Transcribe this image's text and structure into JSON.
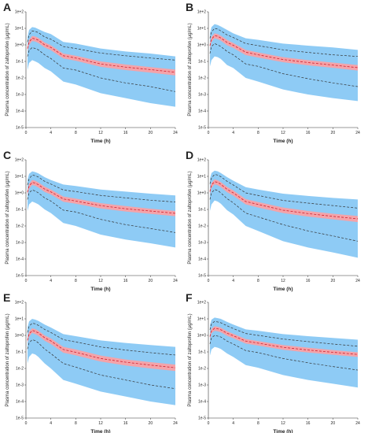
{
  "figure": {
    "colors": {
      "outer_band": "#8ecbf5",
      "inner_band": "#f4a3a9",
      "median_line": "#d01e2b",
      "bound_line": "#333333",
      "axis": "#333333"
    }
  },
  "chart_data": [
    {
      "type": "area",
      "panel": "A",
      "xlabel": "Time (h)",
      "ylabel": "Plasma concentration of zaltoprofen (μg/mL)",
      "xlim": [
        0,
        24
      ],
      "ylim": [
        1e-05,
        100
      ],
      "yscale": "log",
      "xticks": [
        0,
        4,
        8,
        12,
        16,
        20,
        24
      ],
      "yticks": [
        "1e-5",
        "1e-4",
        "1e-3",
        "1e-2",
        "1e-1",
        "1e+0",
        "1e+1",
        "1e+2"
      ],
      "x": [
        0.25,
        0.5,
        1,
        1.5,
        2,
        3,
        4,
        6,
        8,
        12,
        16,
        20,
        24
      ],
      "series": [
        {
          "role": "outer_upper",
          "values": [
            3,
            8,
            12,
            11,
            9,
            6,
            4.5,
            1.5,
            1.2,
            0.6,
            0.4,
            0.3,
            0.2
          ]
        },
        {
          "role": "dashed_upper",
          "values": [
            1.5,
            4,
            7,
            6.5,
            5.5,
            3,
            2.2,
            0.8,
            0.6,
            0.32,
            0.22,
            0.16,
            0.12
          ]
        },
        {
          "role": "inner_upper",
          "values": [
            0.8,
            2,
            3.5,
            3.2,
            2.6,
            1.4,
            0.95,
            0.3,
            0.22,
            0.1,
            0.065,
            0.045,
            0.032
          ]
        },
        {
          "role": "median",
          "values": [
            0.6,
            1.5,
            2.5,
            2.3,
            1.9,
            1,
            0.7,
            0.22,
            0.16,
            0.07,
            0.045,
            0.032,
            0.022
          ]
        },
        {
          "role": "inner_lower",
          "values": [
            0.4,
            1,
            1.7,
            1.6,
            1.3,
            0.7,
            0.48,
            0.15,
            0.11,
            0.047,
            0.03,
            0.021,
            0.014
          ]
        },
        {
          "role": "dashed_lower",
          "values": [
            0.2,
            0.45,
            0.7,
            0.6,
            0.5,
            0.25,
            0.15,
            0.04,
            0.03,
            0.01,
            0.005,
            0.003,
            0.0015
          ]
        },
        {
          "role": "outer_lower",
          "values": [
            0.03,
            0.08,
            0.12,
            0.1,
            0.08,
            0.04,
            0.025,
            0.006,
            0.004,
            0.0012,
            0.0006,
            0.0003,
            0.00018
          ]
        }
      ]
    },
    {
      "type": "area",
      "panel": "B",
      "xlabel": "Time (h)",
      "ylabel": "Plasma concentration of zaltoprofen (μg/mL)",
      "xlim": [
        0,
        24
      ],
      "ylim": [
        1e-05,
        100
      ],
      "yscale": "log",
      "xticks": [
        0,
        4,
        8,
        12,
        16,
        20,
        24
      ],
      "yticks": [
        "1e-5",
        "1e-4",
        "1e-3",
        "1e-2",
        "1e-1",
        "1e+0",
        "1e+1",
        "1e+2"
      ],
      "x": [
        0.25,
        0.5,
        1,
        1.5,
        2,
        3,
        4,
        6,
        8,
        12,
        16,
        20,
        24
      ],
      "series": [
        {
          "role": "outer_upper",
          "values": [
            5,
            12,
            18,
            16,
            13,
            8,
            5,
            2.5,
            2,
            1.2,
            0.9,
            0.7,
            0.5
          ]
        },
        {
          "role": "dashed_upper",
          "values": [
            2.5,
            6,
            10,
            9,
            7,
            4,
            2.8,
            1.2,
            0.9,
            0.5,
            0.35,
            0.25,
            0.2
          ]
        },
        {
          "role": "inner_upper",
          "values": [
            1.2,
            3,
            5,
            4.5,
            3.6,
            2,
            1.3,
            0.5,
            0.35,
            0.18,
            0.12,
            0.085,
            0.06
          ]
        },
        {
          "role": "median",
          "values": [
            0.9,
            2.2,
            3.6,
            3.3,
            2.6,
            1.4,
            0.95,
            0.36,
            0.25,
            0.13,
            0.085,
            0.06,
            0.042
          ]
        },
        {
          "role": "inner_lower",
          "values": [
            0.6,
            1.5,
            2.5,
            2.2,
            1.8,
            0.95,
            0.65,
            0.24,
            0.17,
            0.09,
            0.058,
            0.041,
            0.028
          ]
        },
        {
          "role": "dashed_lower",
          "values": [
            0.3,
            0.8,
            1.2,
            1,
            0.8,
            0.4,
            0.25,
            0.07,
            0.05,
            0.018,
            0.009,
            0.005,
            0.003
          ]
        },
        {
          "role": "outer_lower",
          "values": [
            0.05,
            0.12,
            0.2,
            0.18,
            0.14,
            0.06,
            0.04,
            0.01,
            0.006,
            0.002,
            0.001,
            0.0006,
            0.0004
          ]
        }
      ]
    },
    {
      "type": "area",
      "panel": "C",
      "xlabel": "Time (h)",
      "ylabel": "Plasma concentration of zaltoprofen (μg/mL)",
      "xlim": [
        0,
        24
      ],
      "ylim": [
        1e-05,
        100
      ],
      "yscale": "log",
      "xticks": [
        0,
        4,
        8,
        12,
        16,
        20,
        24
      ],
      "yticks": [
        "1e-5",
        "1e-4",
        "1e-3",
        "1e-2",
        "1e-1",
        "1e+0",
        "1e+1",
        "1e+2"
      ],
      "x": [
        0.25,
        0.5,
        1,
        1.5,
        2,
        3,
        4,
        6,
        8,
        12,
        16,
        20,
        24
      ],
      "series": [
        {
          "role": "outer_upper",
          "values": [
            6,
            14,
            20,
            18,
            15,
            9,
            6,
            3.2,
            2.6,
            1.6,
            1.2,
            0.9,
            0.7
          ]
        },
        {
          "role": "dashed_upper",
          "values": [
            3,
            7,
            12,
            11,
            9,
            5,
            3.4,
            1.5,
            1.2,
            0.7,
            0.5,
            0.36,
            0.28
          ]
        },
        {
          "role": "inner_upper",
          "values": [
            1.5,
            3.5,
            6,
            5.4,
            4.3,
            2.4,
            1.6,
            0.6,
            0.45,
            0.24,
            0.16,
            0.11,
            0.08
          ]
        },
        {
          "role": "median",
          "values": [
            1.1,
            2.6,
            4.3,
            3.9,
            3.1,
            1.7,
            1.15,
            0.43,
            0.32,
            0.17,
            0.11,
            0.08,
            0.058
          ]
        },
        {
          "role": "inner_lower",
          "values": [
            0.75,
            1.8,
            3,
            2.7,
            2.1,
            1.15,
            0.8,
            0.29,
            0.22,
            0.115,
            0.075,
            0.054,
            0.039
          ]
        },
        {
          "role": "dashed_lower",
          "values": [
            0.4,
            1,
            1.5,
            1.3,
            1,
            0.5,
            0.32,
            0.09,
            0.07,
            0.025,
            0.012,
            0.007,
            0.004
          ]
        },
        {
          "role": "outer_lower",
          "values": [
            0.08,
            0.2,
            0.3,
            0.25,
            0.2,
            0.1,
            0.06,
            0.015,
            0.01,
            0.003,
            0.0015,
            0.0009,
            0.0005
          ]
        }
      ]
    },
    {
      "type": "area",
      "panel": "D",
      "xlabel": "Time (h)",
      "ylabel": "Plasma concentration of zaltoprofen (μg/mL)",
      "xlim": [
        0,
        24
      ],
      "ylim": [
        1e-05,
        100
      ],
      "yscale": "log",
      "xticks": [
        0,
        4,
        8,
        12,
        16,
        20,
        24
      ],
      "yticks": [
        "1e-5",
        "1e-4",
        "1e-3",
        "1e-2",
        "1e-1",
        "1e+0",
        "1e+1",
        "1e+2"
      ],
      "x": [
        0.25,
        0.5,
        1,
        1.5,
        2,
        3,
        4,
        6,
        8,
        12,
        16,
        20,
        24
      ],
      "series": [
        {
          "role": "outer_upper",
          "values": [
            7,
            16,
            22,
            20,
            16,
            9,
            5.5,
            2.2,
            1.6,
            0.9,
            0.65,
            0.5,
            0.4
          ]
        },
        {
          "role": "dashed_upper",
          "values": [
            3.5,
            8,
            13,
            12,
            9.5,
            5,
            3,
            1,
            0.7,
            0.35,
            0.24,
            0.17,
            0.12
          ]
        },
        {
          "role": "inner_upper",
          "values": [
            1.6,
            4,
            6.5,
            5.8,
            4.5,
            2.3,
            1.4,
            0.42,
            0.28,
            0.13,
            0.08,
            0.055,
            0.04
          ]
        },
        {
          "role": "median",
          "values": [
            1.2,
            3,
            4.8,
            4.3,
            3.3,
            1.65,
            1,
            0.3,
            0.2,
            0.09,
            0.056,
            0.038,
            0.027
          ]
        },
        {
          "role": "inner_lower",
          "values": [
            0.8,
            2,
            3.3,
            2.9,
            2.2,
            1.1,
            0.68,
            0.2,
            0.13,
            0.06,
            0.037,
            0.025,
            0.017
          ]
        },
        {
          "role": "dashed_lower",
          "values": [
            0.4,
            1,
            1.6,
            1.4,
            1,
            0.45,
            0.25,
            0.06,
            0.035,
            0.012,
            0.005,
            0.0025,
            0.0012
          ]
        },
        {
          "role": "outer_lower",
          "values": [
            0.08,
            0.2,
            0.35,
            0.3,
            0.22,
            0.09,
            0.05,
            0.01,
            0.005,
            0.0012,
            0.0005,
            0.00025,
            0.00012
          ]
        }
      ]
    },
    {
      "type": "area",
      "panel": "E",
      "xlabel": "Time (h)",
      "ylabel": "Plasma concentration of zaltoprofen (μg/mL)",
      "xlim": [
        0,
        24
      ],
      "ylim": [
        1e-05,
        100
      ],
      "yscale": "log",
      "xticks": [
        0,
        4,
        8,
        12,
        16,
        20,
        24
      ],
      "yticks": [
        "1e-5",
        "1e-4",
        "1e-3",
        "1e-2",
        "1e-1",
        "1e+0",
        "1e+1",
        "1e+2"
      ],
      "x": [
        0.25,
        0.5,
        1,
        1.5,
        2,
        3,
        4,
        6,
        8,
        12,
        16,
        20,
        24
      ],
      "series": [
        {
          "role": "outer_upper",
          "values": [
            3,
            7,
            10,
            9,
            7.5,
            4.5,
            3,
            1.2,
            0.9,
            0.5,
            0.35,
            0.26,
            0.2
          ]
        },
        {
          "role": "dashed_upper",
          "values": [
            1.5,
            3.5,
            5.5,
            5,
            4,
            2.3,
            1.5,
            0.55,
            0.4,
            0.2,
            0.13,
            0.09,
            0.065
          ]
        },
        {
          "role": "inner_upper",
          "values": [
            0.7,
            1.7,
            2.7,
            2.4,
            1.9,
            1,
            0.65,
            0.2,
            0.14,
            0.06,
            0.035,
            0.024,
            0.017
          ]
        },
        {
          "role": "median",
          "values": [
            0.5,
            1.2,
            2,
            1.75,
            1.4,
            0.72,
            0.46,
            0.14,
            0.095,
            0.04,
            0.024,
            0.016,
            0.011
          ]
        },
        {
          "role": "inner_lower",
          "values": [
            0.35,
            0.85,
            1.4,
            1.2,
            0.95,
            0.48,
            0.3,
            0.09,
            0.062,
            0.026,
            0.015,
            0.01,
            0.007
          ]
        },
        {
          "role": "dashed_lower",
          "values": [
            0.15,
            0.35,
            0.55,
            0.48,
            0.35,
            0.15,
            0.08,
            0.02,
            0.012,
            0.004,
            0.002,
            0.001,
            0.0006
          ]
        },
        {
          "role": "outer_lower",
          "values": [
            0.02,
            0.05,
            0.08,
            0.07,
            0.05,
            0.02,
            0.01,
            0.002,
            0.0012,
            0.0004,
            0.0002,
            0.0001,
            6e-05
          ]
        }
      ]
    },
    {
      "type": "area",
      "panel": "F",
      "xlabel": "Time (h)",
      "ylabel": "Plasma concentration of zaltoprofen (μg/mL)",
      "xlim": [
        0,
        24
      ],
      "ylim": [
        1e-05,
        100
      ],
      "yscale": "log",
      "xticks": [
        0,
        4,
        8,
        12,
        16,
        20,
        24
      ],
      "yticks": [
        "1e-5",
        "1e-4",
        "1e-3",
        "1e-2",
        "1e-1",
        "1e+0",
        "1e+1",
        "1e+2"
      ],
      "x": [
        0.25,
        0.5,
        1,
        1.5,
        2,
        3,
        4,
        6,
        8,
        12,
        16,
        20,
        24
      ],
      "series": [
        {
          "role": "outer_upper",
          "values": [
            4,
            9,
            12,
            11,
            10,
            6.5,
            4.5,
            2.3,
            1.9,
            1.2,
            0.9,
            0.7,
            0.55
          ]
        },
        {
          "role": "dashed_upper",
          "values": [
            2.2,
            5,
            7,
            6.5,
            5.8,
            3.8,
            2.6,
            1.3,
            1,
            0.6,
            0.42,
            0.3,
            0.22
          ]
        },
        {
          "role": "inner_upper",
          "values": [
            1.1,
            2.5,
            3.6,
            3.3,
            2.9,
            1.8,
            1.25,
            0.6,
            0.45,
            0.26,
            0.18,
            0.13,
            0.095
          ]
        },
        {
          "role": "median",
          "values": [
            0.85,
            1.9,
            2.7,
            2.5,
            2.2,
            1.35,
            0.95,
            0.45,
            0.34,
            0.19,
            0.13,
            0.095,
            0.07
          ]
        },
        {
          "role": "inner_lower",
          "values": [
            0.6,
            1.35,
            1.9,
            1.75,
            1.55,
            0.95,
            0.67,
            0.32,
            0.24,
            0.135,
            0.092,
            0.067,
            0.05
          ]
        },
        {
          "role": "dashed_lower",
          "values": [
            0.3,
            0.7,
            1,
            0.9,
            0.8,
            0.45,
            0.3,
            0.12,
            0.09,
            0.04,
            0.022,
            0.013,
            0.008
          ]
        },
        {
          "role": "outer_lower",
          "values": [
            0.06,
            0.14,
            0.2,
            0.18,
            0.15,
            0.08,
            0.05,
            0.016,
            0.011,
            0.004,
            0.002,
            0.0012,
            0.0007
          ]
        }
      ]
    }
  ]
}
